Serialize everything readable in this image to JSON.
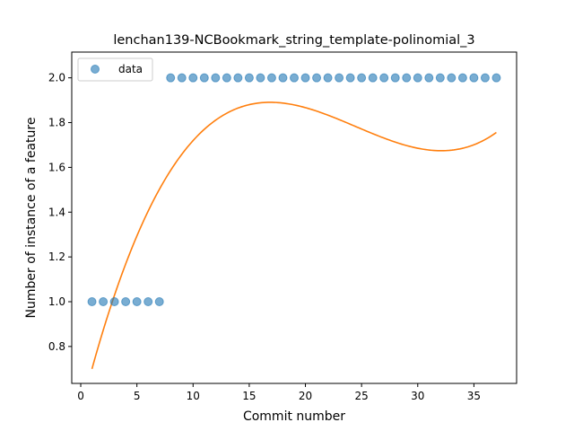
{
  "chart_data": {
    "type": "scatter",
    "title": "lenchan139-NCBookmark_string_template-polinomial_3",
    "xlabel": "Commit number",
    "ylabel": "Number of instance of a feature",
    "xlim": [
      -0.8,
      38.8
    ],
    "ylim": [
      0.635,
      2.115
    ],
    "xticks": [
      0,
      5,
      10,
      15,
      20,
      25,
      30,
      35
    ],
    "yticks": [
      0.8,
      1.0,
      1.2,
      1.4,
      1.6,
      1.8,
      2.0
    ],
    "ytick_labels": [
      "0.8",
      "1.0",
      "1.2",
      "1.4",
      "1.6",
      "1.8",
      "2.0"
    ],
    "legend": {
      "position": "top-left",
      "entries": [
        "data"
      ]
    },
    "grid": false,
    "series": [
      {
        "name": "data",
        "kind": "scatter",
        "color": "#1f77b4",
        "x": [
          1,
          2,
          3,
          4,
          5,
          6,
          7,
          8,
          9,
          10,
          11,
          12,
          13,
          14,
          15,
          16,
          17,
          18,
          19,
          20,
          21,
          22,
          23,
          24,
          25,
          26,
          27,
          28,
          29,
          30,
          31,
          32,
          33,
          34,
          35,
          36,
          37
        ],
        "y": [
          1,
          1,
          1,
          1,
          1,
          1,
          1,
          2,
          2,
          2,
          2,
          2,
          2,
          2,
          2,
          2,
          2,
          2,
          2,
          2,
          2,
          2,
          2,
          2,
          2,
          2,
          2,
          2,
          2,
          2,
          2,
          2,
          2,
          2,
          2,
          2,
          2
        ]
      },
      {
        "kind": "line",
        "color": "#ff7f0e",
        "fit": "cubic polynomial",
        "x_range": [
          1,
          37
        ],
        "coefficients": [
          0.5104,
          0.1985,
          -0.00898,
          0.0001223
        ]
      }
    ]
  }
}
